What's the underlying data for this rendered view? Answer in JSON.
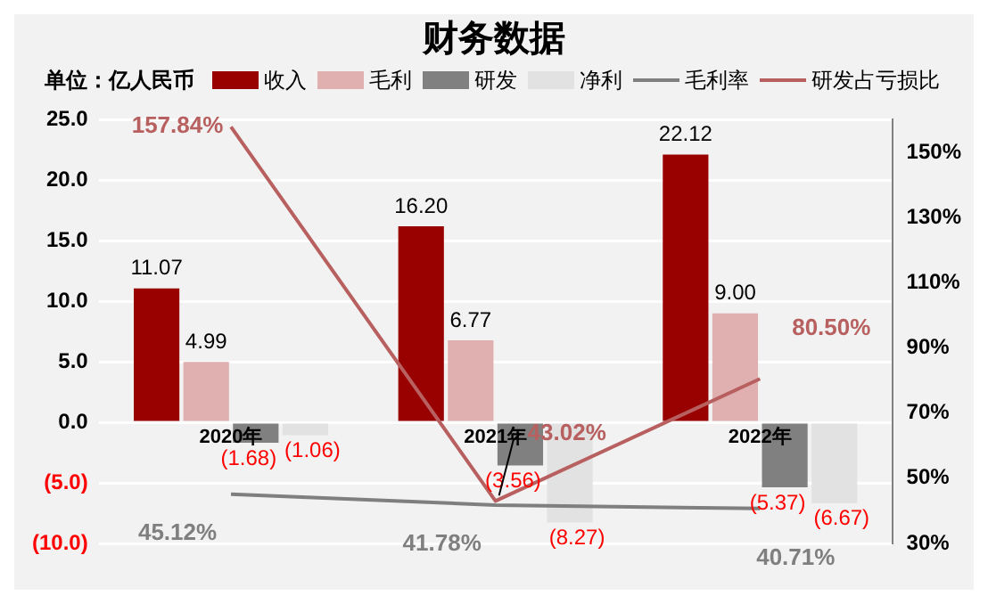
{
  "chart_data": {
    "type": "bar",
    "title": "财务数据",
    "ylabel": "单位：亿人民币",
    "categories": [
      "2020年",
      "2021年",
      "2022年"
    ],
    "series": [
      {
        "name": "收入",
        "color": "#990000",
        "values": [
          11.07,
          16.2,
          22.12
        ],
        "value_labels": [
          "11.07",
          "16.20",
          "22.12"
        ]
      },
      {
        "name": "毛利",
        "color": "#e0b0b0",
        "values": [
          4.99,
          6.77,
          9.0
        ],
        "value_labels": [
          "4.99",
          "6.77",
          "9.00"
        ]
      },
      {
        "name": "研发",
        "color": "#808080",
        "values": [
          -1.68,
          -3.56,
          -5.37
        ],
        "value_labels": [
          "(1.68)",
          "(3.56)",
          "(5.37)"
        ]
      },
      {
        "name": "净利",
        "color": "#e2e2e2",
        "values": [
          -1.06,
          -8.27,
          -6.67
        ],
        "value_labels": [
          "(1.06)",
          "(8.27)",
          "(6.67)"
        ]
      },
      {
        "name": "毛利率",
        "type": "line",
        "axis": "y2",
        "color": "#7f7f7f",
        "values": [
          45.12,
          41.78,
          40.71
        ],
        "value_labels": [
          "45.12%",
          "41.78%",
          "40.71%"
        ]
      },
      {
        "name": "研发占亏损比",
        "type": "line",
        "axis": "y2",
        "color": "#b86060",
        "values": [
          157.84,
          43.02,
          80.5
        ],
        "value_labels": [
          "157.84%",
          "43.02%",
          "80.50%"
        ]
      }
    ],
    "ylim": [
      -10,
      25
    ],
    "yticks": [
      {
        "value": -10,
        "label": "(10.0)"
      },
      {
        "value": -5,
        "label": "(5.0)"
      },
      {
        "value": 0,
        "label": "0.0"
      },
      {
        "value": 5,
        "label": "5.0"
      },
      {
        "value": 10,
        "label": "10.0"
      },
      {
        "value": 15,
        "label": "15.0"
      },
      {
        "value": 20,
        "label": "20.0"
      },
      {
        "value": 25,
        "label": "25.0"
      }
    ],
    "y2lim": [
      30,
      160
    ],
    "y2ticks": [
      {
        "value": 30,
        "label": "30%"
      },
      {
        "value": 50,
        "label": "50%"
      },
      {
        "value": 70,
        "label": "70%"
      },
      {
        "value": 90,
        "label": "90%"
      },
      {
        "value": 110,
        "label": "110%"
      },
      {
        "value": 130,
        "label": "130%"
      },
      {
        "value": 150,
        "label": "150%"
      }
    ],
    "grid": "y",
    "legend": "top",
    "marker": "none"
  }
}
